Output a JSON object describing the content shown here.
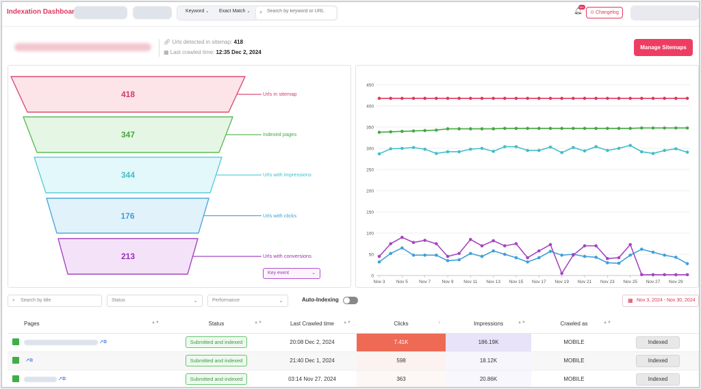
{
  "header": {
    "title": "Indexation Dashboard",
    "keyword_filter": "Keyword",
    "match_filter": "Exact Match",
    "search_placeholder": "Search by keyword or URL",
    "notif_badge": "99+",
    "changelog_label": "Changelog"
  },
  "info": {
    "urls_detected_label": "Urls detected in sitemap:",
    "urls_detected_value": "418",
    "last_crawled_label": "Last crawled time:",
    "last_crawled_value": "12:35 Dec 2, 2024",
    "manage_button": "Manage Sitemaps"
  },
  "funnel": [
    {
      "value": "418",
      "label": "Urls in sitemap",
      "color": "#d13c65",
      "fill": "#fde4e9",
      "stroke": "#d94c73"
    },
    {
      "value": "347",
      "label": "Indexed pages",
      "color": "#46a644",
      "fill": "#e6f6e4",
      "stroke": "#5dbb59"
    },
    {
      "value": "344",
      "label": "Urls with impressions",
      "color": "#3fbfc9",
      "fill": "#e3f8fa",
      "stroke": "#5ccdd6"
    },
    {
      "value": "176",
      "label": "Urls with clicks",
      "color": "#3d9fd8",
      "fill": "#e2f2fb",
      "stroke": "#4fa8dc"
    },
    {
      "value": "213",
      "label": "Urls with conversions",
      "color": "#9a2fb7",
      "fill": "#f4e3f8",
      "stroke": "#a445bf"
    }
  ],
  "key_event_label": "Key event",
  "chart_data": {
    "type": "line",
    "x": [
      "Nov 3",
      "Nov 4",
      "Nov 5",
      "Nov 6",
      "Nov 7",
      "Nov 8",
      "Nov 9",
      "Nov 10",
      "Nov 11",
      "Nov 12",
      "Nov 13",
      "Nov 14",
      "Nov 15",
      "Nov 16",
      "Nov 17",
      "Nov 18",
      "Nov 19",
      "Nov 20",
      "Nov 21",
      "Nov 22",
      "Nov 23",
      "Nov 24",
      "Nov 25",
      "Nov 26",
      "Nov 27",
      "Nov 28",
      "Nov 29",
      "Nov 30"
    ],
    "xticks": [
      "Nov 3",
      "Nov 5",
      "Nov 7",
      "Nov 9",
      "Nov 11",
      "Nov 13",
      "Nov 15",
      "Nov 17",
      "Nov 19",
      "Nov 21",
      "Nov 23",
      "Nov 25",
      "Nov 27",
      "Nov 29"
    ],
    "ylim": [
      0,
      450
    ],
    "yticks": [
      0,
      50,
      100,
      150,
      200,
      250,
      300,
      350,
      400,
      450
    ],
    "grid": true,
    "series": [
      {
        "color": "#e0355c",
        "values": [
          418,
          418,
          418,
          418,
          418,
          418,
          418,
          418,
          418,
          418,
          418,
          418,
          418,
          418,
          418,
          418,
          418,
          418,
          418,
          418,
          418,
          418,
          418,
          418,
          418,
          418,
          418,
          418
        ]
      },
      {
        "color": "#46a644",
        "values": [
          338,
          339,
          340,
          341,
          342,
          343,
          346,
          346,
          346,
          346,
          346,
          347,
          347,
          347,
          347,
          347,
          347,
          347,
          347,
          347,
          347,
          347,
          347,
          348,
          348,
          348,
          348,
          348
        ]
      },
      {
        "color": "#3fbfc9",
        "values": [
          287,
          299,
          300,
          302,
          298,
          288,
          292,
          292,
          298,
          300,
          293,
          304,
          304,
          295,
          295,
          303,
          290,
          302,
          294,
          304,
          295,
          300,
          307,
          292,
          288,
          295,
          299,
          291
        ]
      },
      {
        "color": "#3d9fd8",
        "values": [
          32,
          52,
          65,
          48,
          48,
          48,
          35,
          37,
          52,
          45,
          58,
          50,
          42,
          32,
          42,
          57,
          48,
          50,
          45,
          43,
          30,
          29,
          48,
          62,
          55,
          48,
          43,
          28
        ]
      },
      {
        "color": "#a445bf",
        "values": [
          45,
          75,
          90,
          78,
          83,
          75,
          45,
          52,
          85,
          70,
          82,
          70,
          75,
          42,
          58,
          73,
          5,
          48,
          70,
          70,
          40,
          42,
          73,
          2,
          2,
          2,
          2,
          2
        ]
      }
    ]
  },
  "filters": {
    "search_placeholder": "Search by title",
    "status_placeholder": "Status",
    "performance_placeholder": "Performance",
    "auto_indexing_label": "Auto-Indexing",
    "date_range": "Nov 3, 2024 - Nov 30, 2024"
  },
  "table": {
    "columns": [
      "Pages",
      "Status",
      "Last Crawled time",
      "Clicks",
      "Impressions",
      "Crawled as"
    ],
    "rows": [
      {
        "status": "Submitted and indexed",
        "crawled": "20:08 Dec 2, 2024",
        "clicks": "7.41K",
        "impressions": "186.19K",
        "crawled_as": "MOBILE",
        "action": "Indexed"
      },
      {
        "status": "Submitted and indexed",
        "crawled": "21:40 Dec 1, 2024",
        "clicks": "598",
        "impressions": "18.12K",
        "crawled_as": "MOBILE",
        "action": "Indexed"
      },
      {
        "status": "Submitted and indexed",
        "crawled": "03:14 Nov 27, 2024",
        "clicks": "363",
        "impressions": "20.86K",
        "crawled_as": "MOBILE",
        "action": "Indexed"
      }
    ]
  }
}
